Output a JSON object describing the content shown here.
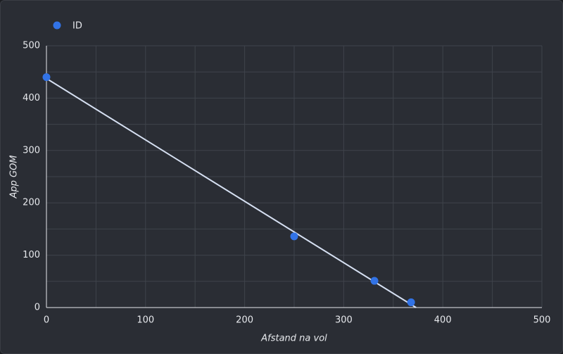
{
  "chart_data": {
    "type": "scatter",
    "x_label": "Afstand na vol",
    "y_label": "App GOM",
    "series": [
      {
        "name": "ID",
        "color": "#3273e6",
        "x": [
          0,
          250,
          331,
          368
        ],
        "values": [
          440,
          136,
          51,
          10
        ]
      }
    ],
    "trendline": "linear",
    "trendline_color": "#d6e0f2",
    "xlim": [
      0,
      500
    ],
    "xticks": [
      0,
      100,
      200,
      300,
      400,
      500
    ],
    "ylim": [
      0,
      500
    ],
    "yticks": [
      0,
      100,
      200,
      300,
      400,
      500
    ],
    "grid": true,
    "legend": "top-left"
  }
}
